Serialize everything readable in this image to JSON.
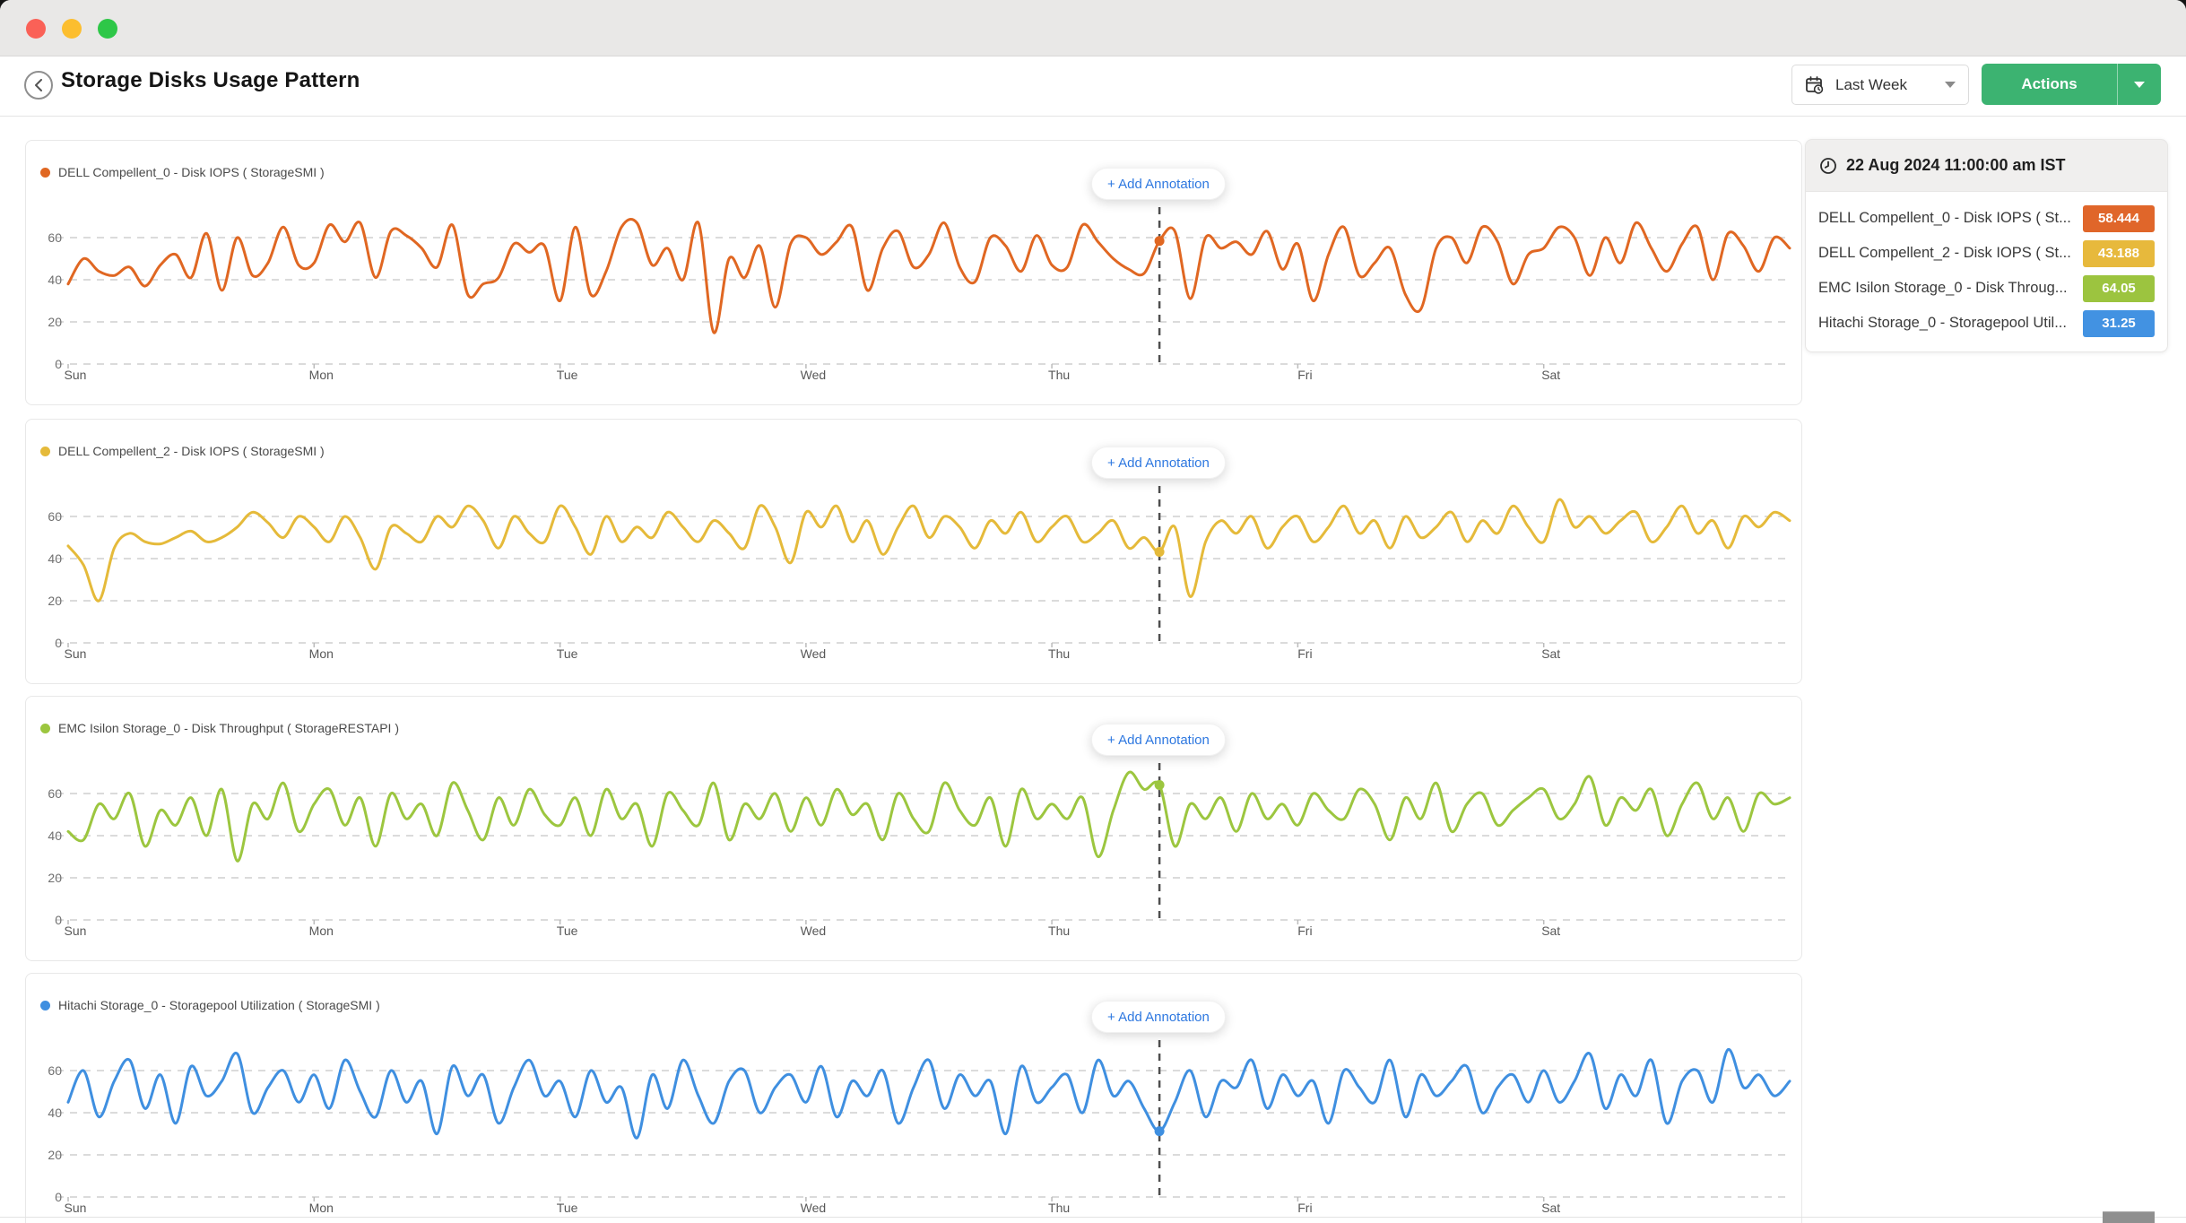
{
  "window": {
    "controls": [
      "close",
      "minimize",
      "zoom"
    ]
  },
  "header": {
    "title": "Storage Disks Usage Pattern"
  },
  "toolbar": {
    "time_range": "Last Week",
    "actions": "Actions"
  },
  "labels": {
    "add_annotation": "+ Add Annotation"
  },
  "tooltip": {
    "timestamp": "22 Aug 2024 11:00:00 am IST",
    "rows": [
      {
        "label": "DELL Compellent_0 - Disk IOPS ( St...",
        "value": "58.444",
        "color": "#e0662a"
      },
      {
        "label": "DELL Compellent_2 - Disk IOPS ( St...",
        "value": "43.188",
        "color": "#e7b93c"
      },
      {
        "label": "EMC Isilon Storage_0 - Disk Throug...",
        "value": "64.05",
        "color": "#9cc43f"
      },
      {
        "label": "Hitachi Storage_0 - Storagepool Util...",
        "value": "31.25",
        "color": "#4292e2"
      }
    ]
  },
  "chart_data": [
    {
      "type": "line",
      "title": "DELL Compellent_0 - Disk IOPS ( StorageSMI )",
      "color": "#e06722",
      "categories": [
        "Sun",
        "Mon",
        "Tue",
        "Wed",
        "Thu",
        "Fri",
        "Sat"
      ],
      "yticks": [
        0,
        20,
        40,
        60
      ],
      "ylim": [
        0,
        70
      ],
      "points_per_day": 16,
      "grid": "dashed-horizontal",
      "legend_position": "top-left",
      "crosshair": {
        "index": 71,
        "day": "Thu",
        "time_label": "22 Aug 2024 11:00:00 am IST",
        "value": 58.444
      },
      "values": [
        38,
        50,
        44,
        42,
        46,
        37,
        47,
        52,
        41,
        62,
        35,
        60,
        42,
        48,
        65,
        47,
        48,
        66,
        58,
        67,
        41,
        63,
        61,
        55,
        46,
        66,
        33,
        38,
        41,
        57,
        53,
        56,
        30,
        65,
        33,
        44,
        65,
        67,
        47,
        55,
        40,
        67,
        15,
        50,
        41,
        56,
        27,
        57,
        60,
        52,
        58,
        65,
        35,
        55,
        63,
        46,
        52,
        67,
        46,
        39,
        60,
        56,
        44,
        61,
        47,
        46,
        66,
        58,
        50,
        45,
        43,
        58.444,
        63,
        31,
        60,
        55,
        58,
        52,
        63,
        45,
        57,
        30,
        52,
        65,
        42,
        48,
        55,
        33,
        26,
        55,
        60,
        48,
        65,
        58,
        38,
        52,
        55,
        65,
        60,
        42,
        60,
        48,
        67,
        55,
        44,
        57,
        65,
        40,
        62,
        56,
        44,
        60,
        55
      ]
    },
    {
      "type": "line",
      "title": "DELL Compellent_2 - Disk IOPS ( StorageSMI )",
      "color": "#e5ba3a",
      "categories": [
        "Sun",
        "Mon",
        "Tue",
        "Wed",
        "Thu",
        "Fri",
        "Sat"
      ],
      "yticks": [
        0,
        20,
        40,
        60
      ],
      "ylim": [
        0,
        70
      ],
      "points_per_day": 16,
      "grid": "dashed-horizontal",
      "legend_position": "top-left",
      "crosshair": {
        "index": 71,
        "day": "Thu",
        "time_label": "22 Aug 2024 11:00:00 am IST",
        "value": 43.188
      },
      "values": [
        46,
        37,
        20,
        45,
        52,
        48,
        47,
        50,
        53,
        48,
        50,
        55,
        62,
        57,
        50,
        60,
        55,
        48,
        60,
        50,
        35,
        55,
        52,
        48,
        60,
        55,
        65,
        58,
        45,
        60,
        52,
        48,
        65,
        55,
        42,
        60,
        48,
        55,
        50,
        62,
        55,
        48,
        58,
        52,
        45,
        65,
        55,
        38,
        62,
        55,
        65,
        48,
        58,
        42,
        55,
        65,
        50,
        60,
        55,
        45,
        58,
        52,
        62,
        48,
        55,
        60,
        48,
        52,
        58,
        45,
        50,
        43.188,
        55,
        22,
        48,
        58,
        52,
        60,
        45,
        55,
        60,
        48,
        55,
        65,
        52,
        58,
        45,
        60,
        50,
        55,
        62,
        48,
        58,
        52,
        65,
        55,
        48,
        68,
        55,
        60,
        52,
        58,
        62,
        48,
        55,
        65,
        52,
        58,
        45,
        60,
        55,
        62,
        58
      ]
    },
    {
      "type": "line",
      "title": "EMC Isilon Storage_0 - Disk Throughput ( StorageRESTAPI )",
      "color": "#9cc63f",
      "categories": [
        "Sun",
        "Mon",
        "Tue",
        "Wed",
        "Thu",
        "Fri",
        "Sat"
      ],
      "yticks": [
        0,
        20,
        40,
        60
      ],
      "ylim": [
        0,
        70
      ],
      "points_per_day": 16,
      "grid": "dashed-horizontal",
      "legend_position": "top-left",
      "crosshair": {
        "index": 71,
        "day": "Thu",
        "time_label": "22 Aug 2024 11:00:00 am IST",
        "value": 64.05
      },
      "values": [
        42,
        38,
        55,
        48,
        60,
        35,
        52,
        45,
        58,
        40,
        62,
        28,
        55,
        48,
        65,
        42,
        55,
        62,
        45,
        58,
        35,
        60,
        48,
        55,
        40,
        65,
        52,
        38,
        58,
        45,
        62,
        50,
        45,
        58,
        40,
        62,
        48,
        55,
        35,
        60,
        52,
        45,
        65,
        38,
        55,
        48,
        60,
        42,
        58,
        45,
        62,
        50,
        55,
        38,
        60,
        48,
        42,
        65,
        52,
        45,
        58,
        35,
        62,
        48,
        55,
        48,
        58,
        30,
        52,
        70,
        62,
        64.05,
        35,
        55,
        48,
        58,
        42,
        60,
        48,
        55,
        45,
        60,
        52,
        48,
        62,
        55,
        38,
        58,
        48,
        65,
        42,
        55,
        60,
        45,
        52,
        58,
        62,
        48,
        55,
        68,
        45,
        58,
        52,
        62,
        40,
        55,
        65,
        48,
        58,
        42,
        60,
        55,
        58
      ]
    },
    {
      "type": "line",
      "title": "Hitachi Storage_0 - Storagepool Utilization ( StorageSMI )",
      "color": "#3f8fe0",
      "categories": [
        "Sun",
        "Mon",
        "Tue",
        "Wed",
        "Thu",
        "Fri",
        "Sat"
      ],
      "yticks": [
        0,
        20,
        40,
        60
      ],
      "ylim": [
        0,
        70
      ],
      "points_per_day": 16,
      "grid": "dashed-horizontal",
      "legend_position": "top-left",
      "crosshair": {
        "index": 71,
        "day": "Thu",
        "time_label": "22 Aug 2024 11:00:00 am IST",
        "value": 31.25
      },
      "values": [
        45,
        60,
        38,
        55,
        65,
        42,
        58,
        35,
        62,
        48,
        55,
        68,
        40,
        52,
        60,
        45,
        58,
        42,
        65,
        50,
        38,
        60,
        45,
        55,
        30,
        62,
        48,
        58,
        35,
        52,
        65,
        48,
        55,
        38,
        60,
        45,
        52,
        28,
        58,
        42,
        65,
        48,
        35,
        55,
        60,
        40,
        52,
        58,
        45,
        62,
        38,
        55,
        48,
        60,
        35,
        52,
        65,
        42,
        58,
        48,
        55,
        30,
        62,
        45,
        52,
        58,
        40,
        65,
        48,
        55,
        42,
        31.25,
        45,
        60,
        38,
        55,
        52,
        65,
        42,
        58,
        48,
        55,
        35,
        60,
        52,
        45,
        65,
        38,
        58,
        48,
        55,
        62,
        40,
        52,
        58,
        45,
        60,
        45,
        55,
        68,
        42,
        58,
        48,
        65,
        35,
        55,
        60,
        45,
        70,
        52,
        58,
        48,
        55
      ]
    }
  ]
}
